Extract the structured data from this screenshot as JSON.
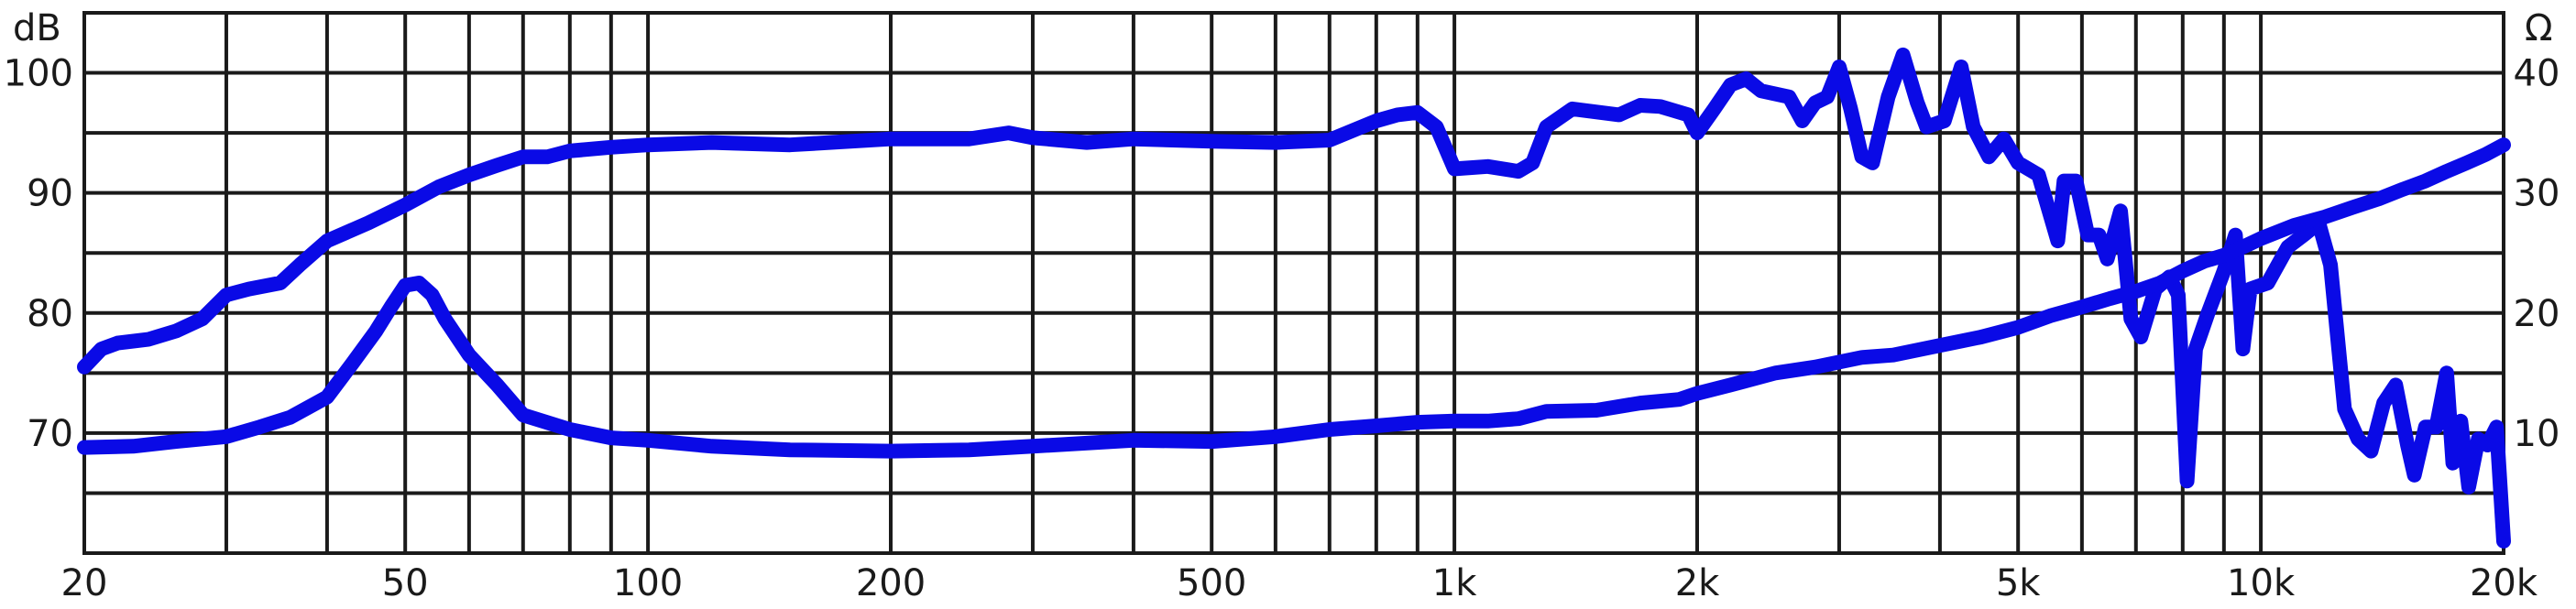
{
  "chart_data": {
    "type": "line",
    "x_scale": "log",
    "xlim": [
      20,
      20000
    ],
    "grid": true,
    "left_axis": {
      "unit_label": "dB",
      "ylim": [
        60,
        105
      ],
      "ticks": [
        70,
        80,
        90,
        100
      ]
    },
    "right_axis": {
      "unit_label": "Ω",
      "ylim": [
        0,
        45
      ],
      "ticks": [
        10,
        20,
        30,
        40
      ]
    },
    "x_ticks": [
      {
        "value": 20,
        "label": "20"
      },
      {
        "value": 50,
        "label": "50"
      },
      {
        "value": 100,
        "label": "100"
      },
      {
        "value": 200,
        "label": "200"
      },
      {
        "value": 500,
        "label": "500"
      },
      {
        "value": 1000,
        "label": "1k"
      },
      {
        "value": 2000,
        "label": "2k"
      },
      {
        "value": 5000,
        "label": "5k"
      },
      {
        "value": 10000,
        "label": "10k"
      },
      {
        "value": 20000,
        "label": "20k"
      }
    ],
    "series": [
      {
        "axis": "left",
        "color": "#0a0ae6",
        "points": [
          [
            20,
            75.5
          ],
          [
            21,
            77
          ],
          [
            22,
            77.5
          ],
          [
            24,
            77.8
          ],
          [
            26,
            78.5
          ],
          [
            28,
            79.5
          ],
          [
            30,
            81.5
          ],
          [
            32,
            82
          ],
          [
            35,
            82.5
          ],
          [
            37,
            84
          ],
          [
            40,
            86
          ],
          [
            45,
            87.5
          ],
          [
            50,
            89
          ],
          [
            55,
            90.5
          ],
          [
            60,
            91.5
          ],
          [
            65,
            92.3
          ],
          [
            70,
            93
          ],
          [
            75,
            93
          ],
          [
            80,
            93.5
          ],
          [
            90,
            93.8
          ],
          [
            100,
            94
          ],
          [
            120,
            94.2
          ],
          [
            150,
            94
          ],
          [
            200,
            94.5
          ],
          [
            250,
            94.5
          ],
          [
            280,
            95
          ],
          [
            300,
            94.6
          ],
          [
            350,
            94.2
          ],
          [
            400,
            94.5
          ],
          [
            500,
            94.3
          ],
          [
            600,
            94.2
          ],
          [
            700,
            94.4
          ],
          [
            800,
            96
          ],
          [
            850,
            96.5
          ],
          [
            900,
            96.7
          ],
          [
            950,
            95.5
          ],
          [
            1000,
            92
          ],
          [
            1100,
            92.2
          ],
          [
            1200,
            91.8
          ],
          [
            1250,
            92.5
          ],
          [
            1300,
            95.5
          ],
          [
            1400,
            97
          ],
          [
            1600,
            96.5
          ],
          [
            1700,
            97.3
          ],
          [
            1800,
            97.2
          ],
          [
            1950,
            96.5
          ],
          [
            2000,
            95
          ],
          [
            2100,
            97
          ],
          [
            2200,
            99
          ],
          [
            2300,
            99.5
          ],
          [
            2400,
            98.5
          ],
          [
            2600,
            98
          ],
          [
            2700,
            96
          ],
          [
            2800,
            97.5
          ],
          [
            2900,
            98
          ],
          [
            3000,
            100.5
          ],
          [
            3100,
            97
          ],
          [
            3200,
            93
          ],
          [
            3300,
            92.5
          ],
          [
            3450,
            98
          ],
          [
            3600,
            101.5
          ],
          [
            3750,
            97.5
          ],
          [
            3850,
            95.5
          ],
          [
            4050,
            96
          ],
          [
            4250,
            100.5
          ],
          [
            4400,
            95.5
          ],
          [
            4600,
            93
          ],
          [
            4800,
            94.5
          ],
          [
            5000,
            92.5
          ],
          [
            5300,
            91.5
          ],
          [
            5600,
            86
          ],
          [
            5700,
            91
          ],
          [
            5900,
            91
          ],
          [
            6100,
            86.5
          ],
          [
            6300,
            86.5
          ],
          [
            6450,
            84.5
          ],
          [
            6700,
            88.5
          ],
          [
            6900,
            79.5
          ],
          [
            7100,
            78
          ],
          [
            7400,
            82
          ],
          [
            7700,
            83
          ],
          [
            7900,
            81.5
          ],
          [
            8100,
            66
          ],
          [
            8300,
            77
          ],
          [
            8600,
            80
          ],
          [
            9000,
            83.5
          ],
          [
            9300,
            86.5
          ],
          [
            9500,
            77
          ],
          [
            9700,
            82
          ],
          [
            10200,
            82.5
          ],
          [
            10800,
            85.5
          ],
          [
            11300,
            86.5
          ],
          [
            11800,
            87.5
          ],
          [
            12200,
            84
          ],
          [
            12700,
            72
          ],
          [
            13200,
            69.5
          ],
          [
            13700,
            68.5
          ],
          [
            14200,
            72.5
          ],
          [
            14700,
            74
          ],
          [
            15200,
            69
          ],
          [
            15500,
            66.5
          ],
          [
            16000,
            70.5
          ],
          [
            16500,
            70.5
          ],
          [
            17000,
            75
          ],
          [
            17300,
            67.5
          ],
          [
            17700,
            71
          ],
          [
            18100,
            65.5
          ],
          [
            18600,
            69.5
          ],
          [
            19100,
            69
          ],
          [
            19600,
            70.5
          ],
          [
            20000,
            61
          ]
        ]
      },
      {
        "axis": "right",
        "color": "#0a0ae6",
        "points": [
          [
            20,
            8.8
          ],
          [
            23,
            8.9
          ],
          [
            26,
            9.3
          ],
          [
            30,
            9.7
          ],
          [
            33,
            10.5
          ],
          [
            36,
            11.3
          ],
          [
            40,
            13
          ],
          [
            43,
            15.8
          ],
          [
            46,
            18.5
          ],
          [
            48,
            20.5
          ],
          [
            50,
            22.3
          ],
          [
            52,
            22.5
          ],
          [
            54,
            21.5
          ],
          [
            56,
            19.5
          ],
          [
            60,
            16.5
          ],
          [
            65,
            14
          ],
          [
            70,
            11.5
          ],
          [
            80,
            10.3
          ],
          [
            90,
            9.6
          ],
          [
            100,
            9.4
          ],
          [
            120,
            8.9
          ],
          [
            150,
            8.6
          ],
          [
            200,
            8.5
          ],
          [
            250,
            8.6
          ],
          [
            300,
            8.9
          ],
          [
            400,
            9.4
          ],
          [
            500,
            9.3
          ],
          [
            600,
            9.7
          ],
          [
            700,
            10.3
          ],
          [
            800,
            10.6
          ],
          [
            900,
            10.9
          ],
          [
            1000,
            11
          ],
          [
            1100,
            11
          ],
          [
            1200,
            11.2
          ],
          [
            1300,
            11.8
          ],
          [
            1500,
            11.9
          ],
          [
            1700,
            12.5
          ],
          [
            1900,
            12.8
          ],
          [
            2000,
            13.3
          ],
          [
            2200,
            14
          ],
          [
            2500,
            15
          ],
          [
            2800,
            15.5
          ],
          [
            3200,
            16.3
          ],
          [
            3500,
            16.5
          ],
          [
            4000,
            17.3
          ],
          [
            4500,
            18
          ],
          [
            5000,
            18.8
          ],
          [
            5500,
            19.8
          ],
          [
            6000,
            20.5
          ],
          [
            6500,
            21.2
          ],
          [
            7000,
            21.8
          ],
          [
            7500,
            22.5
          ],
          [
            8000,
            23.5
          ],
          [
            8500,
            24.3
          ],
          [
            9000,
            24.8
          ],
          [
            9500,
            25.5
          ],
          [
            10000,
            26.2
          ],
          [
            11000,
            27.3
          ],
          [
            12000,
            28
          ],
          [
            13000,
            28.8
          ],
          [
            14000,
            29.5
          ],
          [
            15000,
            30.3
          ],
          [
            16000,
            31
          ],
          [
            17000,
            31.8
          ],
          [
            18000,
            32.5
          ],
          [
            19000,
            33.2
          ],
          [
            20000,
            34
          ]
        ]
      }
    ]
  }
}
